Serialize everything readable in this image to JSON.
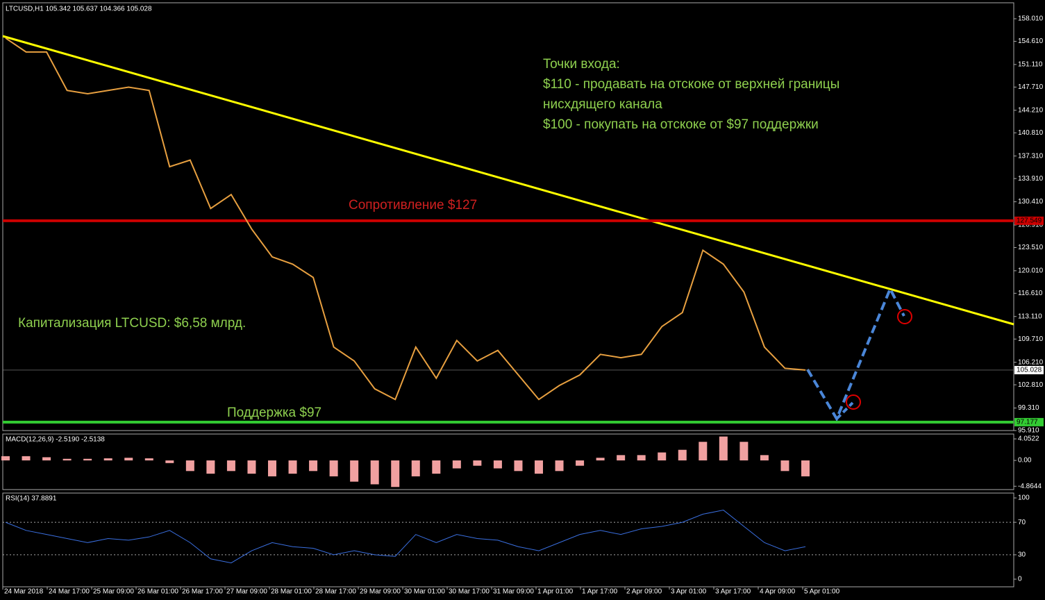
{
  "chart_data": [
    {
      "type": "line",
      "title": "LTCUSD,H1  105.342 105.637 104.366 105.028",
      "color": "#e8a040",
      "values": [
        155.1,
        153,
        153,
        147.2,
        146.7,
        147.2,
        147.7,
        147.2,
        135.7,
        136.7,
        129.4,
        131.5,
        126.3,
        122.1,
        121,
        119,
        108.5,
        106.4,
        102.2,
        100.6,
        108.5,
        103.8,
        109.5,
        106.4,
        108,
        104.3,
        100.6,
        102.7,
        104.3,
        107.4,
        106.9,
        107.4,
        111.6,
        113.7,
        123.1,
        121,
        116.8,
        108.5,
        105.3,
        105.028
      ],
      "ylim": [
        95.91,
        160.42
      ],
      "yticks": [
        {
          "value": 158.01,
          "label": "158.010"
        },
        {
          "value": 154.61,
          "label": "154.610"
        },
        {
          "value": 151.11,
          "label": "151.110"
        },
        {
          "value": 147.71,
          "label": "147.710"
        },
        {
          "value": 144.21,
          "label": "144.210"
        },
        {
          "value": 140.81,
          "label": "140.810"
        },
        {
          "value": 137.31,
          "label": "137.310"
        },
        {
          "value": 133.91,
          "label": "133.910"
        },
        {
          "value": 130.41,
          "label": "130.410"
        },
        {
          "value": 126.91,
          "label": "126.910"
        },
        {
          "value": 123.51,
          "label": "123.510"
        },
        {
          "value": 120.01,
          "label": "120.010"
        },
        {
          "value": 116.61,
          "label": "116.610"
        },
        {
          "value": 113.11,
          "label": "113.110"
        },
        {
          "value": 109.71,
          "label": "109.710"
        },
        {
          "value": 106.21,
          "label": "106.210"
        },
        {
          "value": 102.81,
          "label": "102.810"
        },
        {
          "value": 99.31,
          "label": "99.310"
        },
        {
          "value": 95.91,
          "label": "95.910"
        }
      ],
      "hlines": [
        {
          "value": 127.549,
          "label": "127.549",
          "color": "#cc0000"
        },
        {
          "value": 97.177,
          "label": "97.177",
          "color": "#33cc33"
        }
      ],
      "last": {
        "value": 105.028,
        "label": "105.028"
      },
      "annotations": [
        "Точки входа:",
        "$110 - продавать на отскоке от верхней границы",
        "нисхдящего канала",
        "$100 - покупать на отскоке от $97 поддержки",
        "Сопротивление $127",
        "Капитализация LTCUSD: $6,58 млрд.",
        "Поддержка $97"
      ]
    },
    {
      "type": "bar",
      "title": "MACD(12,26,9) -2.5190 -2.5138",
      "color": "#f0a0a0",
      "values": [
        0.8,
        0.8,
        0.6,
        0.3,
        0.3,
        0.4,
        0.5,
        0.4,
        -0.5,
        -2,
        -2.5,
        -2,
        -2.5,
        -3,
        -2.5,
        -2,
        -3,
        -4,
        -4.5,
        -5,
        -3,
        -2.5,
        -1.5,
        -1,
        -1.5,
        -2,
        -2.5,
        -2,
        -1,
        0.5,
        1,
        1,
        1.5,
        2,
        3.5,
        4.5,
        3.5,
        1,
        -2,
        -3
      ],
      "ylim": [
        -5.49,
        4.97
      ],
      "yticks": [
        {
          "value": 4.0522,
          "label": "4.0522"
        },
        {
          "value": 0,
          "label": "0.00"
        },
        {
          "value": -4.8644,
          "label": "-4.8644"
        }
      ]
    },
    {
      "type": "line",
      "title": "RSI(14) 37.8891",
      "color": "#3a6fe0",
      "values": [
        70,
        60,
        55,
        50,
        45,
        50,
        48,
        52,
        60,
        45,
        25,
        20,
        35,
        45,
        40,
        38,
        30,
        35,
        30,
        28,
        55,
        45,
        55,
        50,
        48,
        40,
        35,
        45,
        55,
        60,
        55,
        62,
        65,
        70,
        80,
        85,
        65,
        45,
        35,
        40
      ],
      "ylim": [
        -9.4,
        106
      ],
      "yticks": [
        100,
        70,
        30,
        0
      ],
      "levels": [
        70,
        30
      ],
      "xlabels": [
        "24 Mar 2018",
        "24 Mar 17:00",
        "25 Mar 09:00",
        "26 Mar 01:00",
        "26 Mar 17:00",
        "27 Mar 09:00",
        "28 Mar 01:00",
        "28 Mar 17:00",
        "29 Mar 09:00",
        "30 Mar 01:00",
        "30 Mar 17:00",
        "31 Mar 09:00",
        "1 Apr 01:00",
        "1 Apr 17:00",
        "2 Apr 09:00",
        "3 Apr 01:00",
        "3 Apr 17:00",
        "4 Apr 09:00",
        "5 Apr 01:00"
      ]
    }
  ]
}
